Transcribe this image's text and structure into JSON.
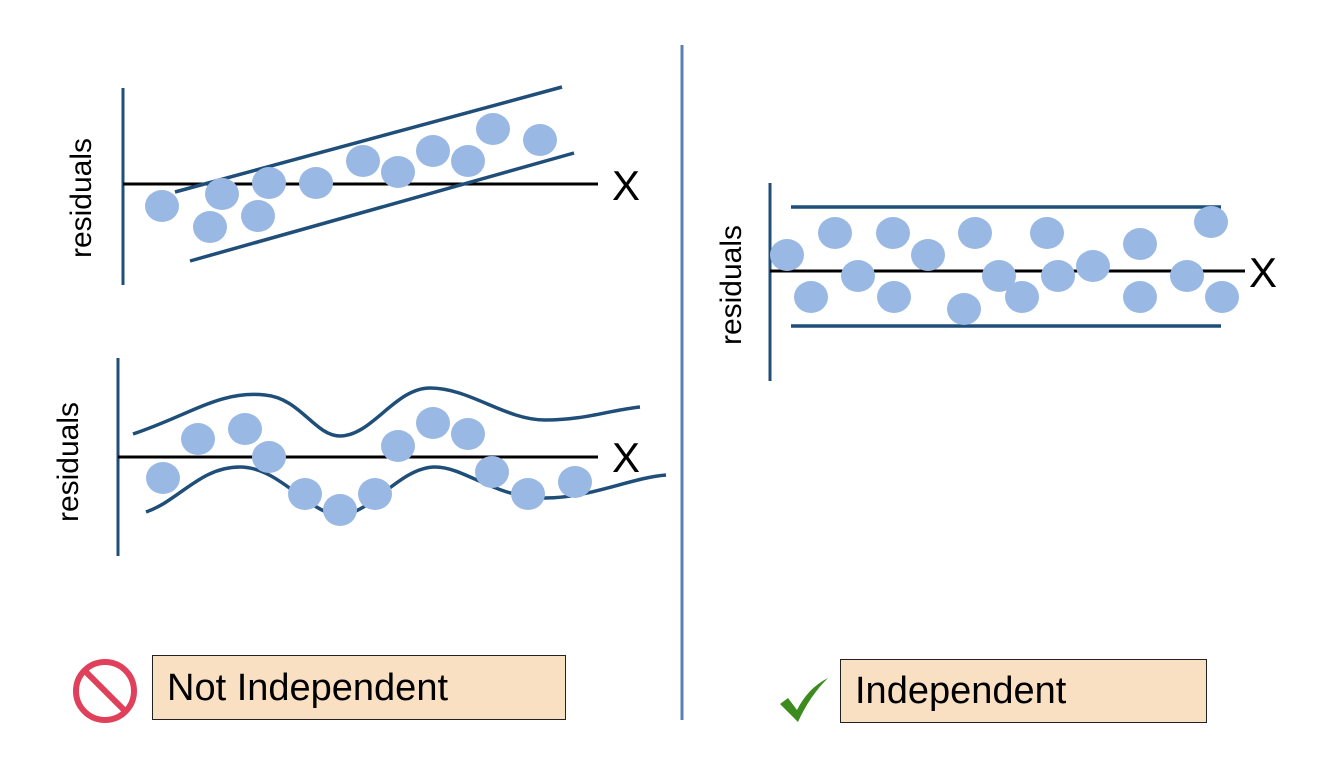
{
  "panels": {
    "not_independent": {
      "trend_plot": {
        "y_axis_label": "residuals",
        "x_axis_label": "X"
      },
      "wave_plot": {
        "y_axis_label": "residuals",
        "x_axis_label": "X"
      },
      "verdict_label": "Not Independent",
      "verdict_icon": "prohibited-icon"
    },
    "independent": {
      "scatter_plot": {
        "y_axis_label": "residuals",
        "x_axis_label": "X"
      },
      "verdict_label": "Independent",
      "verdict_icon": "checkmark-icon"
    }
  },
  "colors": {
    "axis": "#1f4e79",
    "envelope": "#1f4e79",
    "baseline": "#000000",
    "points": "#9ab8e4",
    "divider": "#5b80b4",
    "verdict_box_fill": "#fae0c3",
    "prohibited_icon": "#e0405a",
    "checkmark_icon": "#3d8a1e"
  }
}
